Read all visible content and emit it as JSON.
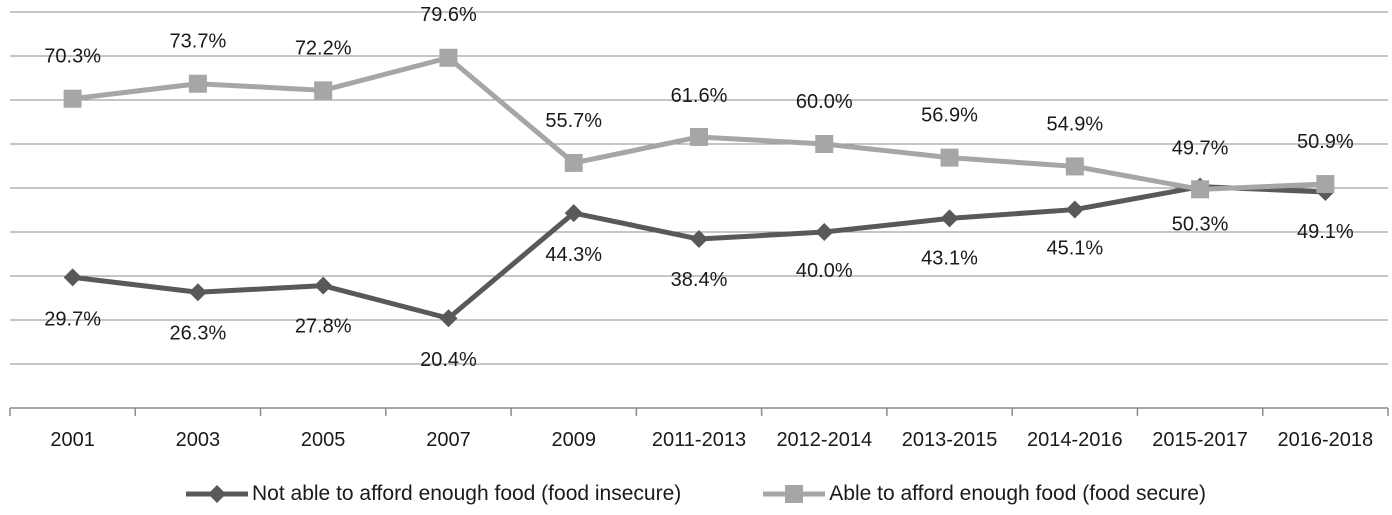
{
  "chart_data": {
    "type": "line",
    "categories": [
      "2001",
      "2003",
      "2005",
      "2007",
      "2009",
      "2011-2013",
      "2012-2014",
      "2013-2015",
      "2014-2016",
      "2015-2017",
      "2016-2018"
    ],
    "series": [
      {
        "name": "Not able to afford enough food (food insecure)",
        "values": [
          29.7,
          26.3,
          27.8,
          20.4,
          44.3,
          38.4,
          40.0,
          43.1,
          45.1,
          50.3,
          49.1
        ],
        "labels": [
          "29.7%",
          "26.3%",
          "27.8%",
          "20.4%",
          "44.3%",
          "38.4%",
          "40.0%",
          "43.1%",
          "45.1%",
          "50.3%",
          "49.1%"
        ],
        "color": "#595959",
        "marker": "diamond"
      },
      {
        "name": "Able to afford enough food (food secure)",
        "values": [
          70.3,
          73.7,
          72.2,
          79.6,
          55.7,
          61.6,
          60.0,
          56.9,
          54.9,
          49.7,
          50.9
        ],
        "labels": [
          "70.3%",
          "73.7%",
          "72.2%",
          "79.6%",
          "55.7%",
          "61.6%",
          "60.0%",
          "56.9%",
          "54.9%",
          "49.7%",
          "50.9%"
        ],
        "color": "#a6a6a6",
        "marker": "square"
      }
    ],
    "ylim": [
      0,
      90
    ],
    "grid": true,
    "y_tick_labels_shown": false,
    "legend_position": "bottom"
  }
}
